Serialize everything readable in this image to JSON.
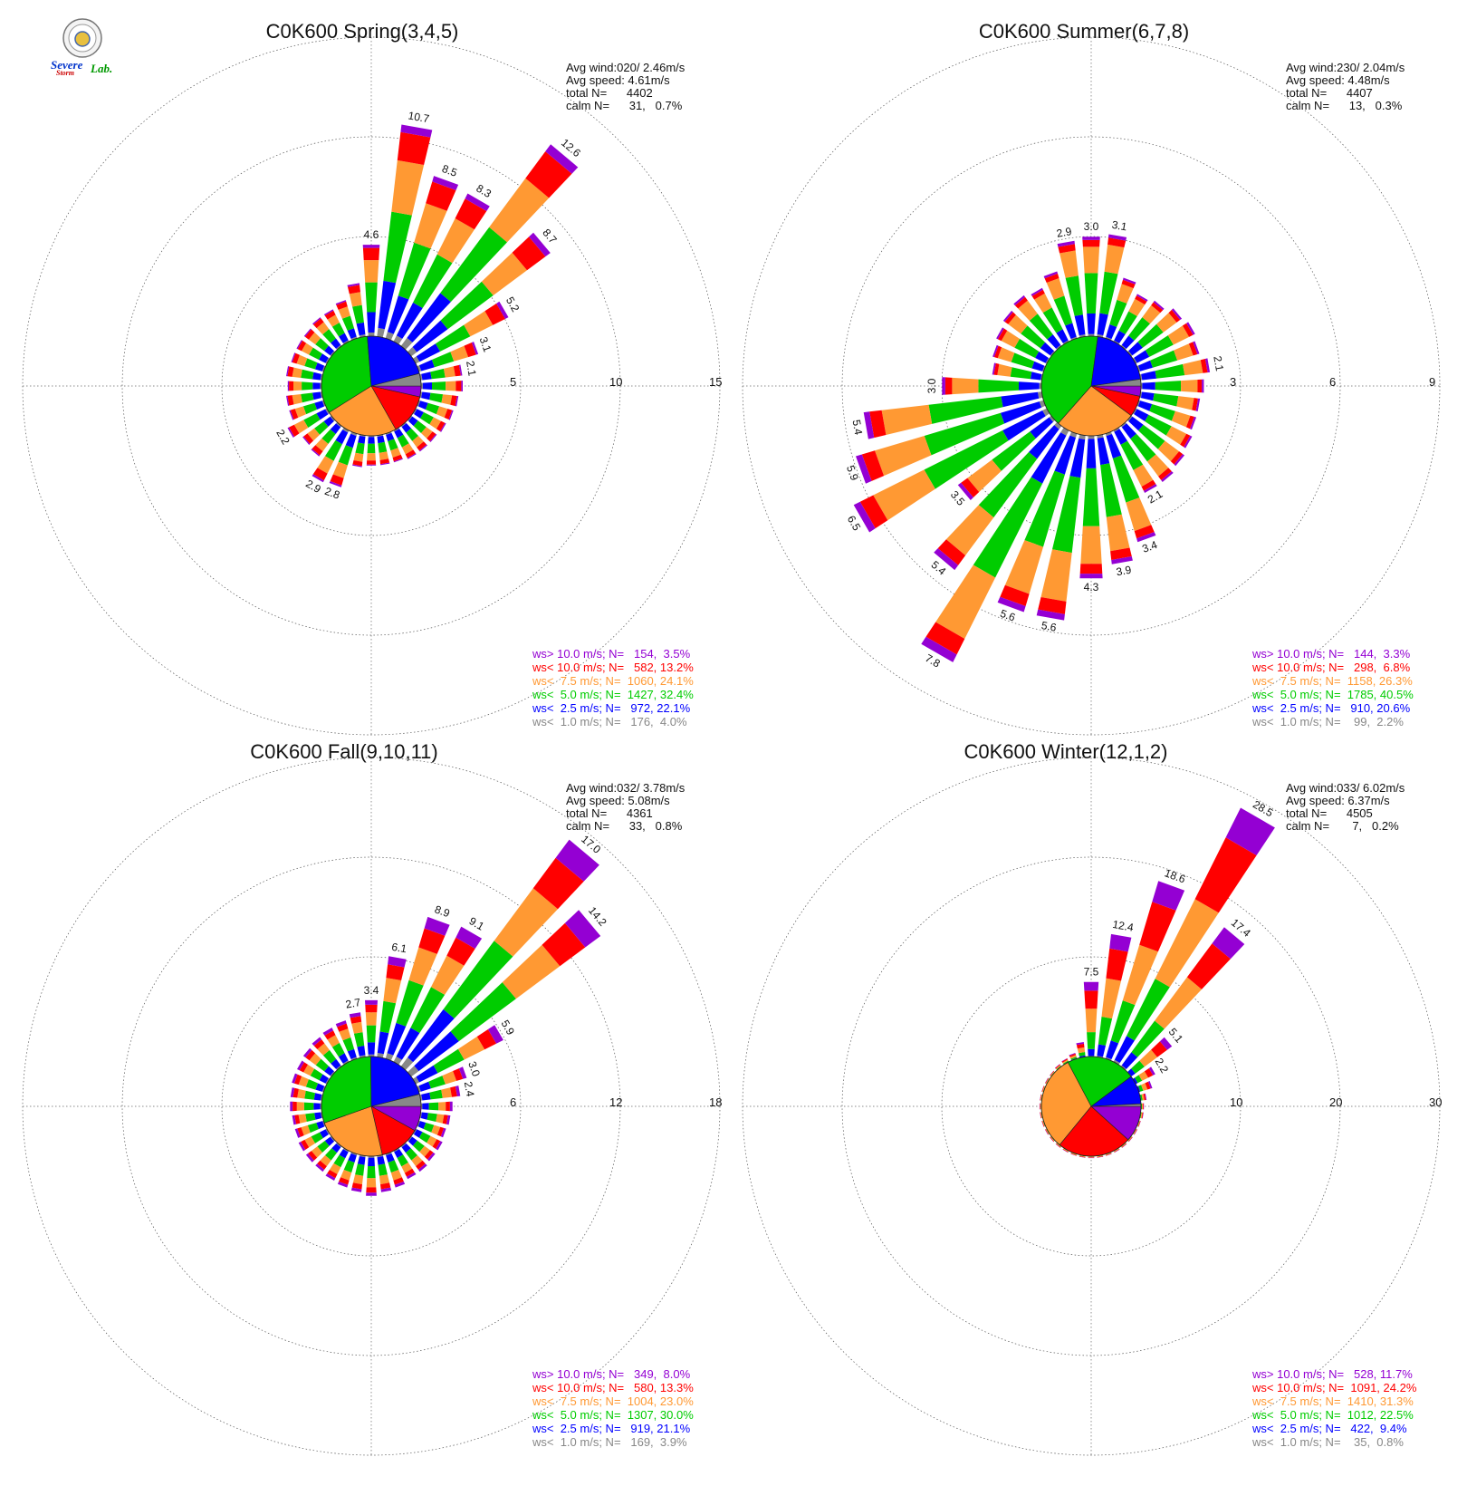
{
  "logo": {
    "word1": "Severe",
    "word2": "Storm",
    "word3": "Lab."
  },
  "colors": {
    "gt10": "#9400d3",
    "lt10": "#ff0000",
    "lt7_5": "#ff9933",
    "lt5": "#00cc00",
    "lt2_5": "#0000ff",
    "lt1": "#888888"
  },
  "chart_data": [
    {
      "type": "windrose",
      "title": "C0K600 Spring(3,4,5)",
      "stats": [
        "Avg wind:020/ 2.46m/s",
        "Avg speed: 4.61m/s",
        "total N=      4402",
        "calm N=      31,   0.7%"
      ],
      "rings": [
        5,
        10,
        15
      ],
      "ring_labels": [
        "5",
        "10",
        "15"
      ],
      "directions_deg": [
        0,
        10,
        20,
        30,
        40,
        50,
        60,
        70,
        80,
        90,
        100,
        110,
        120,
        130,
        140,
        150,
        160,
        170,
        180,
        190,
        200,
        210,
        220,
        230,
        240,
        250,
        260,
        270,
        280,
        290,
        300,
        310,
        320,
        330,
        340,
        350
      ],
      "frequencies": [
        4.6,
        10.7,
        8.5,
        8.3,
        12.6,
        8.7,
        5.2,
        3.1,
        2.1,
        2.1,
        1.9,
        1.8,
        1.7,
        1.6,
        1.6,
        1.6,
        1.5,
        1.5,
        1.5,
        1.6,
        2.8,
        2.9,
        1.9,
        1.8,
        2.2,
        1.8,
        1.8,
        1.7,
        1.8,
        1.7,
        1.7,
        1.7,
        1.8,
        1.8,
        2.0,
        2.7
      ],
      "bar_labels": {
        "0": "4.6",
        "10": "10.7",
        "20": "8.5",
        "30": "8.3",
        "40": "12.6",
        "50": "8.7",
        "60": "5.2",
        "70": "3.1",
        "80": "2.1",
        "200": "2.8",
        "210": "2.9",
        "240": "2.2"
      },
      "legend": [
        "ws> 10.0 m/s; N=   154,  3.5%",
        "ws< 10.0 m/s; N=   582, 13.2%",
        "ws<  7.5 m/s; N=  1060, 24.1%",
        "ws<  5.0 m/s; N=  1427, 32.4%",
        "ws<  2.5 m/s; N=   972, 22.1%",
        "ws<  1.0 m/s; N=   176,  4.0%"
      ],
      "pie": [
        3.5,
        13.2,
        24.1,
        32.4,
        22.1,
        4.0
      ]
    },
    {
      "type": "windrose",
      "title": "C0K600 Summer(6,7,8)",
      "stats": [
        "Avg wind:230/ 2.04m/s",
        "Avg speed: 4.48m/s",
        "total N=      4407",
        "calm N=      13,   0.3%"
      ],
      "rings": [
        3,
        6,
        9
      ],
      "ring_labels": [
        "3",
        "6",
        "9"
      ],
      "directions_deg": [
        0,
        10,
        20,
        30,
        40,
        50,
        60,
        70,
        80,
        90,
        100,
        110,
        120,
        130,
        140,
        150,
        160,
        170,
        180,
        190,
        200,
        210,
        220,
        230,
        240,
        250,
        260,
        270,
        280,
        290,
        300,
        310,
        320,
        330,
        340,
        350
      ],
      "frequencies": [
        3.0,
        3.1,
        1.9,
        1.6,
        1.7,
        1.9,
        2.0,
        1.9,
        2.1,
        1.9,
        1.8,
        1.8,
        1.9,
        2.0,
        2.1,
        2.1,
        3.4,
        3.9,
        4.3,
        5.6,
        5.6,
        7.8,
        5.4,
        3.5,
        6.5,
        5.9,
        5.4,
        3.0,
        1.5,
        1.6,
        1.7,
        1.8,
        1.9,
        1.8,
        2.1,
        2.9
      ],
      "bar_labels": {
        "0": "3.0",
        "10": "3.1",
        "80": "2.1",
        "150": "2.1",
        "160": "3.4",
        "170": "3.9",
        "180": "4.3",
        "190": "5.6",
        "200": "5.6",
        "210": "7.8",
        "220": "5.4",
        "230": "3.5",
        "240": "6.5",
        "250": "5.9",
        "260": "5.4",
        "270": "3.0",
        "350": "2.9"
      },
      "legend": [
        "ws> 10.0 m/s; N=   144,  3.3%",
        "ws< 10.0 m/s; N=   298,  6.8%",
        "ws<  7.5 m/s; N=  1158, 26.3%",
        "ws<  5.0 m/s; N=  1785, 40.5%",
        "ws<  2.5 m/s; N=   910, 20.6%",
        "ws<  1.0 m/s; N=    99,  2.2%"
      ],
      "pie": [
        3.3,
        6.8,
        26.3,
        40.5,
        20.6,
        2.2
      ]
    },
    {
      "type": "windrose",
      "title": "C0K600 Fall(9,10,11)",
      "stats": [
        "Avg wind:032/ 3.78m/s",
        "Avg speed: 5.08m/s",
        "total N=      4361",
        "calm N=      33,   0.8%"
      ],
      "rings": [
        6,
        12,
        18
      ],
      "ring_labels": [
        "6",
        "12",
        "18"
      ],
      "directions_deg": [
        0,
        10,
        20,
        30,
        40,
        50,
        60,
        70,
        80,
        90,
        100,
        110,
        120,
        130,
        140,
        150,
        160,
        170,
        180,
        190,
        200,
        210,
        220,
        230,
        240,
        250,
        260,
        270,
        280,
        290,
        300,
        310,
        320,
        330,
        340,
        350
      ],
      "frequencies": [
        3.4,
        6.1,
        8.9,
        9.1,
        17.0,
        14.2,
        5.9,
        3.0,
        2.4,
        1.9,
        1.8,
        1.7,
        1.8,
        1.8,
        1.9,
        1.9,
        2.1,
        2.2,
        2.4,
        2.2,
        2.1,
        2.0,
        1.9,
        1.9,
        1.9,
        1.8,
        1.8,
        1.9,
        1.9,
        2.0,
        2.0,
        2.1,
        2.2,
        2.3,
        2.4,
        2.7
      ],
      "bar_labels": {
        "0": "3.4",
        "10": "6.1",
        "20": "8.9",
        "30": "9.1",
        "40": "17.0",
        "50": "14.2",
        "60": "5.9",
        "70": "3.0",
        "80": "2.4",
        "350": "2.7"
      },
      "legend": [
        "ws> 10.0 m/s; N=   349,  8.0%",
        "ws< 10.0 m/s; N=   580, 13.3%",
        "ws<  7.5 m/s; N=  1004, 23.0%",
        "ws<  5.0 m/s; N=  1307, 30.0%",
        "ws<  2.5 m/s; N=   919, 21.1%",
        "ws<  1.0 m/s; N=   169,  3.9%"
      ],
      "pie": [
        8.0,
        13.3,
        23.0,
        30.0,
        21.1,
        3.9
      ]
    },
    {
      "type": "windrose",
      "title": "C0K600 Winter(12,1,2)",
      "stats": [
        "Avg wind:033/ 6.02m/s",
        "Avg speed: 6.37m/s",
        "total N=      4505",
        "calm N=       7,   0.2%"
      ],
      "rings": [
        10,
        20,
        30
      ],
      "ring_labels": [
        "10",
        "20",
        "30"
      ],
      "directions_deg": [
        0,
        10,
        20,
        30,
        40,
        50,
        60,
        70,
        80,
        90,
        100,
        110,
        120,
        130,
        140,
        150,
        160,
        170,
        180,
        190,
        200,
        210,
        220,
        230,
        240,
        250,
        260,
        270,
        280,
        290,
        300,
        310,
        320,
        330,
        340,
        350
      ],
      "frequencies": [
        7.5,
        12.4,
        18.6,
        28.5,
        17.4,
        5.1,
        2.2,
        1.4,
        0.6,
        0.3,
        0.3,
        0.2,
        0.2,
        0.2,
        0.2,
        0.2,
        0.2,
        0.2,
        0.2,
        0.2,
        0.2,
        0.2,
        0.2,
        0.2,
        0.2,
        0.2,
        0.2,
        0.2,
        0.2,
        0.2,
        0.2,
        0.2,
        0.3,
        0.4,
        0.6,
        1.5
      ],
      "bar_labels": {
        "0": "7.5",
        "10": "12.4",
        "20": "18.6",
        "30": "28.5",
        "40": "17.4",
        "50": "5.1",
        "60": "2.2"
      },
      "legend": [
        "ws> 10.0 m/s; N=   528, 11.7%",
        "ws< 10.0 m/s; N=  1091, 24.2%",
        "ws<  7.5 m/s; N=  1410, 31.3%",
        "ws<  5.0 m/s; N=  1012, 22.5%",
        "ws<  2.5 m/s; N=   422,  9.4%",
        "ws<  1.0 m/s; N=    35,  0.8%"
      ],
      "pie": [
        11.7,
        24.2,
        31.3,
        22.5,
        9.4,
        0.8
      ]
    }
  ]
}
